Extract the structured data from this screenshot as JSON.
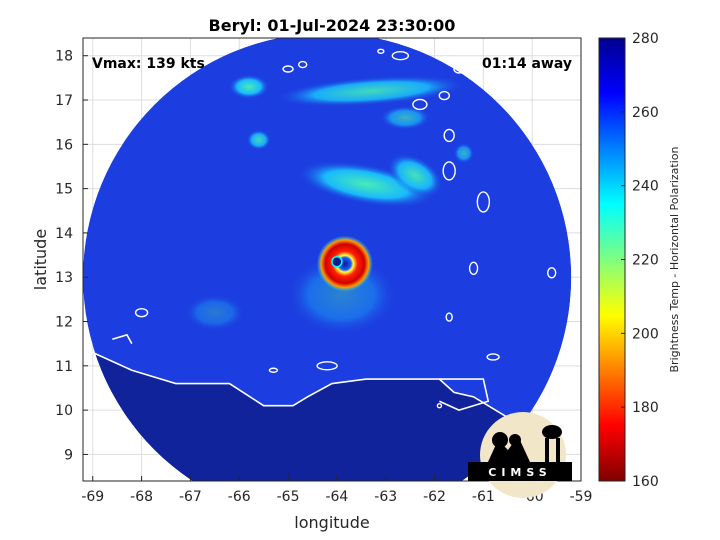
{
  "chart_data": {
    "type": "heatmap",
    "title": "Beryl: 01-Jul-2024 23:30:00",
    "xlabel": "longitude",
    "ylabel": "latitude",
    "xlim": [
      -69.2,
      -59.0
    ],
    "ylim": [
      8.4,
      18.4
    ],
    "xticks": [
      -69,
      -68,
      -67,
      -66,
      -65,
      -64,
      -63,
      -62,
      -61,
      -60,
      -59
    ],
    "yticks": [
      9,
      10,
      11,
      12,
      13,
      14,
      15,
      16,
      17,
      18
    ],
    "grid": true,
    "colorbar": {
      "label": "Brightness Temp - Horizontal Polarization",
      "range": [
        160,
        280
      ],
      "ticks": [
        160,
        180,
        200,
        220,
        240,
        260,
        280
      ],
      "colormap": "jet"
    },
    "annotations": {
      "vmax": "Vmax: 139 kts",
      "time_offset": "01:14 away"
    },
    "storm_center": {
      "lon": -64.0,
      "lat": 13.35
    },
    "swath_center": {
      "lon": -64.2,
      "lat": 13.0,
      "radius_deg": 5.0
    },
    "logo_text": "CIMSS",
    "colors": {
      "background_field": "#1c3ee0",
      "land_field": "#10239a",
      "coastline": "#ffffff"
    }
  }
}
